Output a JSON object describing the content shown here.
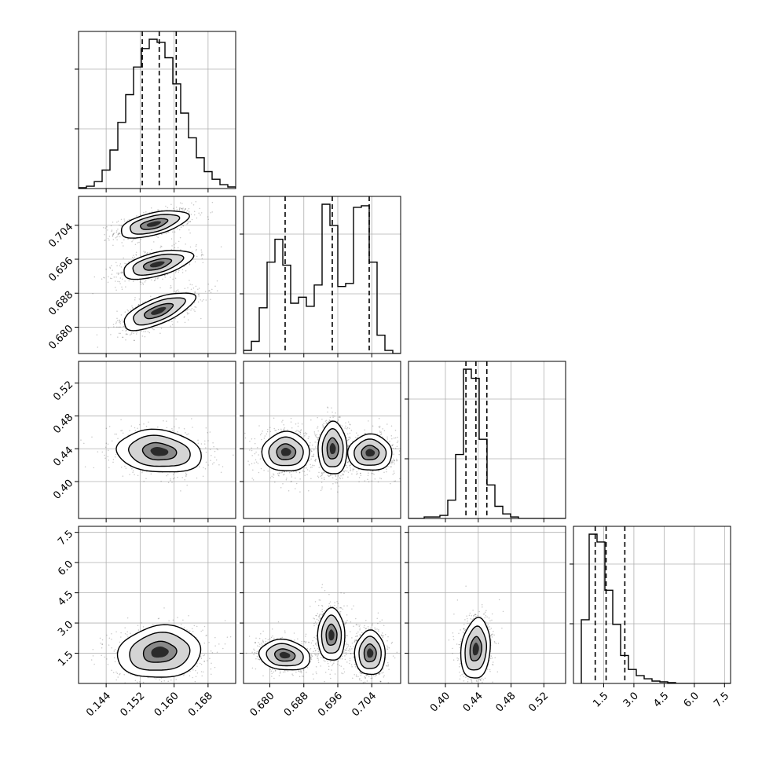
{
  "chart_data": {
    "type": "corner",
    "title": "",
    "grid": true,
    "parameters": [
      {
        "range": [
          0.1375,
          0.1745
        ],
        "ticks": [
          "0.144",
          "0.152",
          "0.160",
          "0.168"
        ],
        "tick_values": [
          0.144,
          0.152,
          0.16,
          0.168
        ],
        "quantiles": [
          0.1525,
          0.1565,
          0.1605
        ],
        "histogram": {
          "bin_start": 0.1375,
          "bin_width": 0.00185,
          "counts": [
            0.5,
            1.5,
            4.5,
            12,
            25,
            43,
            61,
            79,
            91,
            97,
            95,
            85,
            68,
            49,
            33,
            20,
            11,
            6,
            2.5,
            1
          ]
        }
      },
      {
        "range": [
          0.6738,
          0.7108
        ],
        "ticks": [
          "0.680",
          "0.688",
          "0.696",
          "0.704"
        ],
        "tick_values": [
          0.68,
          0.688,
          0.696,
          0.704
        ],
        "quantiles": [
          0.6836,
          0.6947,
          0.7034
        ],
        "histogram": {
          "bin_start": 0.6738,
          "bin_width": 0.00185,
          "counts": [
            2,
            8,
            30,
            60,
            75,
            58,
            33,
            37,
            31,
            45,
            98,
            84,
            44,
            46,
            96,
            97,
            60,
            12,
            2,
            0
          ]
        }
      },
      {
        "range": [
          0.355,
          0.5465
        ],
        "ticks": [
          "0.40",
          "0.44",
          "0.48",
          "0.52"
        ],
        "tick_values": [
          0.4,
          0.44,
          0.48,
          0.52
        ],
        "quantiles": [
          0.425,
          0.4372,
          0.4505
        ],
        "histogram": {
          "bin_start": 0.355,
          "bin_width": 0.009575,
          "counts": [
            0,
            0,
            1,
            1,
            2,
            12,
            42,
            98,
            92,
            52,
            22,
            8,
            3,
            1,
            0,
            0,
            0,
            0,
            0,
            0
          ]
        }
      },
      {
        "range": [
          0,
          7.8
        ],
        "ticks": [
          "1.5",
          "3.0",
          "4.5",
          "6.0",
          "7.5"
        ],
        "tick_values": [
          1.5,
          3.0,
          4.5,
          6.0,
          7.5
        ],
        "quantiles": [
          1.08,
          1.62,
          2.55
        ],
        "histogram": {
          "bin_start": 0.39,
          "bin_width": 0.39,
          "counts": [
            41,
            96,
            91,
            60,
            38,
            18,
            9,
            5,
            3,
            1.5,
            1,
            0.5,
            0,
            0,
            0,
            0,
            0,
            0,
            0,
            0
          ]
        }
      }
    ],
    "contours_2d": [
      {
        "row": 1,
        "col": 0,
        "blobs": [
          {
            "cx": 0.1552,
            "cy": 0.7043,
            "sx": 0.004,
            "sy": 0.0016,
            "corr": 0.55
          },
          {
            "cx": 0.156,
            "cy": 0.6948,
            "sx": 0.0041,
            "sy": 0.0017,
            "corr": 0.55
          },
          {
            "cx": 0.1563,
            "cy": 0.6838,
            "sx": 0.0042,
            "sy": 0.0022,
            "corr": 0.68
          }
        ]
      },
      {
        "row": 2,
        "col": 0,
        "blobs": [
          {
            "cx": 0.1565,
            "cy": 0.4365,
            "sx": 0.005,
            "sy": 0.013,
            "corr": -0.15
          }
        ]
      },
      {
        "row": 2,
        "col": 1,
        "blobs": [
          {
            "cx": 0.6838,
            "cy": 0.436,
            "sx": 0.0028,
            "sy": 0.012,
            "corr": 0.0
          },
          {
            "cx": 0.6948,
            "cy": 0.44,
            "sx": 0.0017,
            "sy": 0.016,
            "corr": 0.0
          },
          {
            "cx": 0.7036,
            "cy": 0.435,
            "sx": 0.0026,
            "sy": 0.011,
            "corr": 0.0
          }
        ]
      },
      {
        "row": 3,
        "col": 0,
        "blobs": [
          {
            "cx": 0.1566,
            "cy": 1.55,
            "sx": 0.0049,
            "sy": 0.65,
            "corr": 0.1
          }
        ]
      },
      {
        "row": 3,
        "col": 1,
        "blobs": [
          {
            "cx": 0.6835,
            "cy": 1.4,
            "sx": 0.003,
            "sy": 0.38,
            "corr": -0.15
          },
          {
            "cx": 0.6945,
            "cy": 2.4,
            "sx": 0.0016,
            "sy": 0.65,
            "corr": 0.0
          },
          {
            "cx": 0.7036,
            "cy": 1.5,
            "sx": 0.0018,
            "sy": 0.55,
            "corr": 0.0
          }
        ]
      },
      {
        "row": 3,
        "col": 2,
        "blobs": [
          {
            "cx": 0.437,
            "cy": 1.7,
            "sx": 0.009,
            "sy": 0.75,
            "corr": 0.15
          }
        ]
      }
    ],
    "contour_levels_sigma": [
      0.8,
      1.45,
      2.0
    ]
  }
}
